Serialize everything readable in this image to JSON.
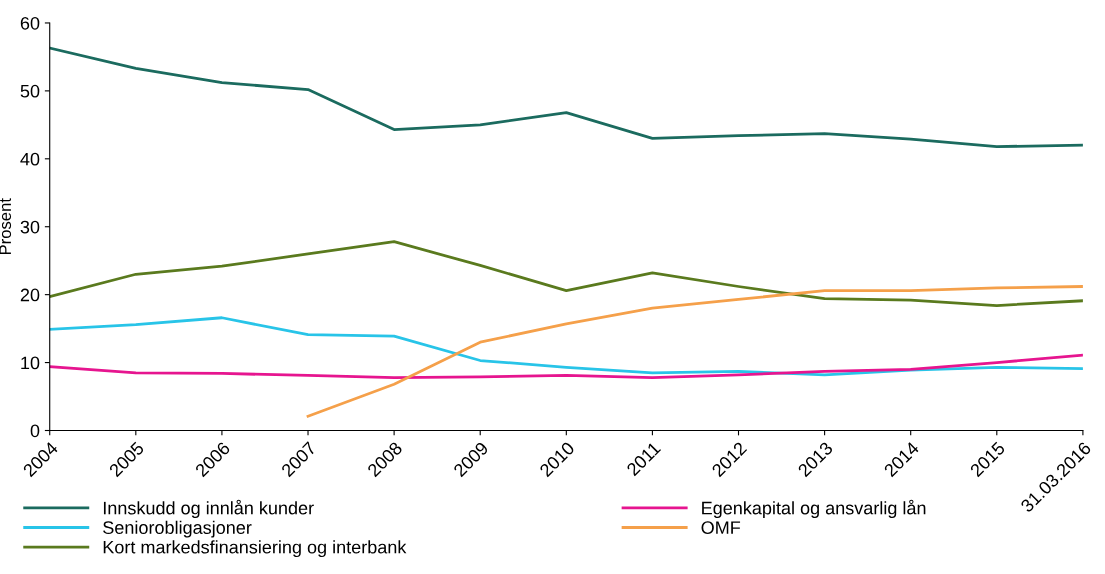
{
  "chart_data": {
    "type": "line",
    "ylabel": "Prosent",
    "categories": [
      "2004",
      "2005",
      "2006",
      "2007",
      "2008",
      "2009",
      "2010",
      "2011",
      "2012",
      "2013",
      "2014",
      "2015",
      "31.03.2016"
    ],
    "ylim": [
      0,
      60
    ],
    "yticks": [
      0,
      10,
      20,
      30,
      40,
      50,
      60
    ],
    "grid": false,
    "legend": "bottom",
    "marker": "none",
    "line_style": "solid",
    "series": [
      {
        "name": "Innskudd og innlån kunder",
        "color": "#1b6b5f",
        "values": [
          56.3,
          53.3,
          51.2,
          50.2,
          44.3,
          45,
          46.8,
          43,
          43.4,
          43.7,
          42.9,
          41.8,
          42
        ]
      },
      {
        "name": "Seniorobligasjoner",
        "color": "#28c4e8",
        "values": [
          14.9,
          15.6,
          16.6,
          14.1,
          13.9,
          10.3,
          9.3,
          8.5,
          8.7,
          8.2,
          8.9,
          9.3,
          9.1
        ]
      },
      {
        "name": "Kort markedsfinansiering og interbank",
        "color": "#5a7a1e",
        "values": [
          19.7,
          23,
          24.2,
          26,
          27.8,
          24.3,
          20.6,
          23.2,
          21.2,
          19.4,
          19.2,
          18.4,
          19.1
        ]
      },
      {
        "name": "Egenkapital og ansvarlig lån",
        "color": "#e6158f",
        "values": [
          9.4,
          8.5,
          8.4,
          8.1,
          7.8,
          7.9,
          8.1,
          7.8,
          8.2,
          8.7,
          9.0,
          10,
          11.1
        ]
      },
      {
        "name": "OMF",
        "color": "#f5a04a",
        "values": [
          null,
          null,
          null,
          2.1,
          6.8,
          13,
          15.7,
          18,
          19.3,
          20.6,
          20.6,
          21,
          21.2
        ]
      }
    ]
  }
}
